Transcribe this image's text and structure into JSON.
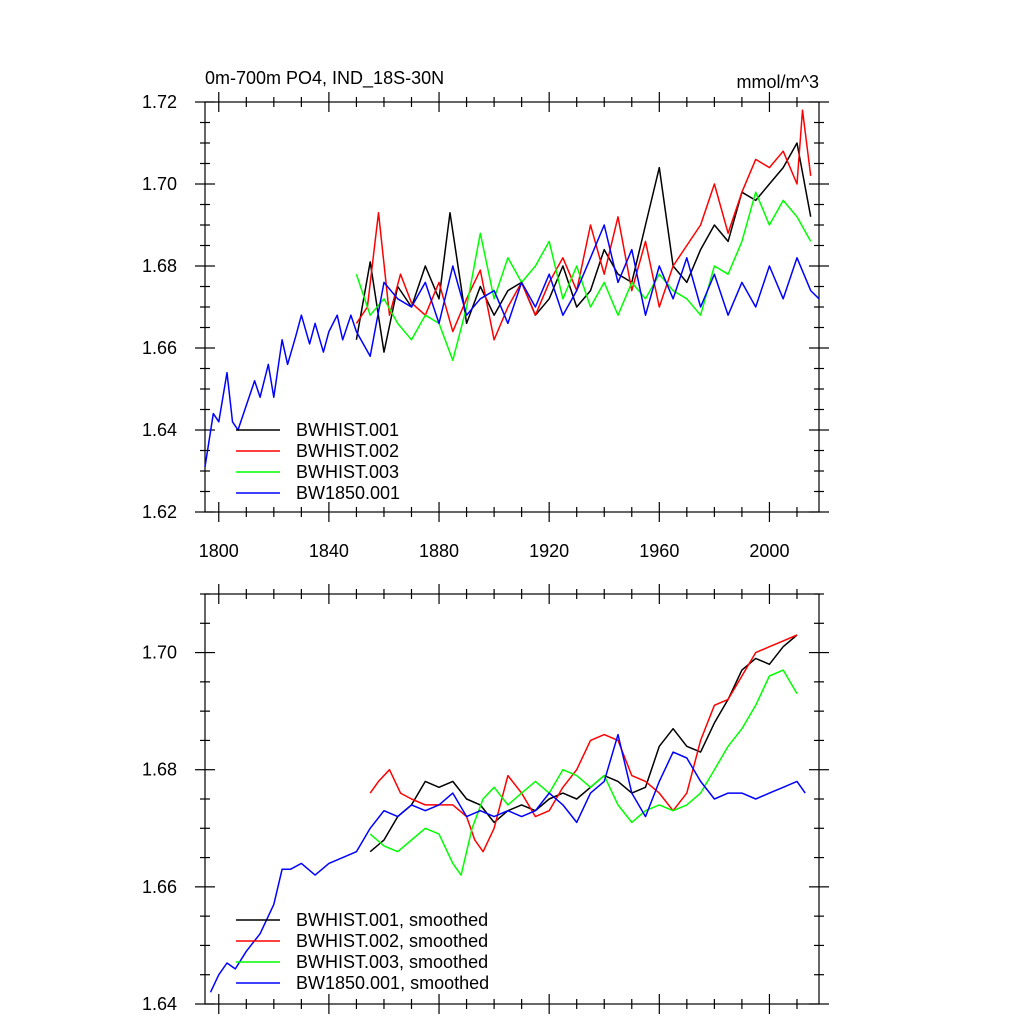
{
  "chart_data": [
    {
      "type": "line",
      "title": "0m-700m PO4, IND_18S-30N",
      "units": "mmol/m^3",
      "xlabel": "",
      "ylabel": "",
      "xlim": [
        1795,
        2018
      ],
      "ylim": [
        1.62,
        1.72
      ],
      "x_major_ticks": [
        1800,
        1840,
        1880,
        1920,
        1960,
        2000
      ],
      "y_major_ticks": [
        1.62,
        1.64,
        1.66,
        1.68,
        1.7,
        1.72
      ],
      "y_tick_labels": [
        "1.62",
        "1.64",
        "1.66",
        "1.68",
        "1.70",
        "1.72"
      ],
      "legend_position": "bottom-left",
      "series": [
        {
          "name": "BWHIST.001",
          "color": "#000000",
          "x": [
            1850,
            1855,
            1860,
            1865,
            1870,
            1875,
            1880,
            1884,
            1890,
            1895,
            1900,
            1905,
            1910,
            1915,
            1920,
            1925,
            1930,
            1935,
            1940,
            1945,
            1950,
            1955,
            1960,
            1965,
            1970,
            1975,
            1980,
            1985,
            1990,
            1995,
            2000,
            2005,
            2010,
            2015
          ],
          "y": [
            1.662,
            1.681,
            1.659,
            1.675,
            1.67,
            1.68,
            1.672,
            1.693,
            1.666,
            1.675,
            1.668,
            1.674,
            1.676,
            1.668,
            1.672,
            1.68,
            1.67,
            1.674,
            1.684,
            1.678,
            1.676,
            1.69,
            1.704,
            1.68,
            1.676,
            1.684,
            1.69,
            1.686,
            1.698,
            1.696,
            1.7,
            1.704,
            1.71,
            1.692
          ]
        },
        {
          "name": "BWHIST.002",
          "color": "#ff0000",
          "x": [
            1850,
            1854,
            1858,
            1862,
            1866,
            1870,
            1875,
            1880,
            1885,
            1890,
            1895,
            1900,
            1905,
            1910,
            1915,
            1920,
            1925,
            1930,
            1935,
            1940,
            1945,
            1950,
            1955,
            1960,
            1965,
            1970,
            1975,
            1980,
            1985,
            1990,
            1995,
            2000,
            2005,
            2010,
            2012,
            2015
          ],
          "y": [
            1.666,
            1.67,
            1.693,
            1.668,
            1.678,
            1.671,
            1.668,
            1.676,
            1.664,
            1.672,
            1.679,
            1.662,
            1.67,
            1.676,
            1.668,
            1.676,
            1.682,
            1.674,
            1.69,
            1.678,
            1.692,
            1.674,
            1.686,
            1.67,
            1.68,
            1.685,
            1.69,
            1.7,
            1.688,
            1.698,
            1.706,
            1.704,
            1.708,
            1.7,
            1.718,
            1.702
          ]
        },
        {
          "name": "BWHIST.003",
          "color": "#00ff00",
          "x": [
            1850,
            1855,
            1860,
            1865,
            1870,
            1875,
            1880,
            1885,
            1890,
            1895,
            1900,
            1905,
            1910,
            1915,
            1920,
            1925,
            1930,
            1935,
            1940,
            1945,
            1950,
            1955,
            1960,
            1965,
            1970,
            1975,
            1980,
            1985,
            1990,
            1995,
            2000,
            2005,
            2010,
            2015
          ],
          "y": [
            1.678,
            1.668,
            1.672,
            1.666,
            1.662,
            1.668,
            1.666,
            1.657,
            1.67,
            1.688,
            1.672,
            1.682,
            1.676,
            1.68,
            1.686,
            1.672,
            1.68,
            1.67,
            1.676,
            1.668,
            1.676,
            1.672,
            1.678,
            1.674,
            1.672,
            1.668,
            1.68,
            1.678,
            1.686,
            1.698,
            1.69,
            1.696,
            1.692,
            1.686
          ]
        },
        {
          "name": "BW1850.001",
          "color": "#0000ff",
          "x": [
            1795,
            1798,
            1800,
            1803,
            1805,
            1807,
            1810,
            1813,
            1815,
            1818,
            1820,
            1823,
            1825,
            1828,
            1830,
            1833,
            1835,
            1838,
            1840,
            1843,
            1845,
            1848,
            1850,
            1855,
            1860,
            1865,
            1870,
            1875,
            1880,
            1885,
            1890,
            1895,
            1900,
            1905,
            1910,
            1915,
            1920,
            1925,
            1930,
            1935,
            1940,
            1945,
            1950,
            1955,
            1960,
            1965,
            1970,
            1975,
            1980,
            1985,
            1990,
            1995,
            2000,
            2005,
            2010,
            2015,
            2018
          ],
          "y": [
            1.631,
            1.644,
            1.642,
            1.654,
            1.642,
            1.64,
            1.646,
            1.652,
            1.648,
            1.656,
            1.648,
            1.662,
            1.656,
            1.663,
            1.668,
            1.661,
            1.666,
            1.659,
            1.664,
            1.668,
            1.662,
            1.668,
            1.664,
            1.658,
            1.676,
            1.672,
            1.67,
            1.676,
            1.666,
            1.68,
            1.668,
            1.672,
            1.674,
            1.666,
            1.676,
            1.67,
            1.678,
            1.668,
            1.674,
            1.682,
            1.69,
            1.676,
            1.684,
            1.668,
            1.68,
            1.672,
            1.682,
            1.67,
            1.678,
            1.668,
            1.676,
            1.67,
            1.68,
            1.672,
            1.682,
            1.674,
            1.672
          ]
        }
      ]
    },
    {
      "type": "line",
      "title": "",
      "xlabel": "",
      "ylabel": "",
      "xlim": [
        1795,
        2018
      ],
      "ylim": [
        1.64,
        1.71
      ],
      "x_major_ticks": [
        1800,
        1840,
        1880,
        1920,
        1960,
        2000
      ],
      "y_major_ticks": [
        1.64,
        1.66,
        1.68,
        1.7
      ],
      "y_tick_labels": [
        "1.64",
        "1.66",
        "1.68",
        "1.70"
      ],
      "legend_position": "bottom-left",
      "series": [
        {
          "name": "BWHIST.001, smoothed",
          "color": "#000000",
          "x": [
            1855,
            1860,
            1865,
            1870,
            1875,
            1880,
            1885,
            1890,
            1895,
            1900,
            1905,
            1910,
            1915,
            1920,
            1925,
            1930,
            1935,
            1940,
            1945,
            1950,
            1955,
            1960,
            1965,
            1970,
            1975,
            1980,
            1985,
            1990,
            1995,
            2000,
            2005,
            2010
          ],
          "y": [
            1.666,
            1.668,
            1.672,
            1.674,
            1.678,
            1.677,
            1.678,
            1.675,
            1.674,
            1.671,
            1.673,
            1.674,
            1.673,
            1.675,
            1.676,
            1.675,
            1.677,
            1.679,
            1.678,
            1.676,
            1.677,
            1.684,
            1.687,
            1.684,
            1.683,
            1.688,
            1.692,
            1.697,
            1.699,
            1.698,
            1.701,
            1.703
          ]
        },
        {
          "name": "BWHIST.002, smoothed",
          "color": "#ff0000",
          "x": [
            1855,
            1858,
            1862,
            1866,
            1870,
            1875,
            1880,
            1885,
            1890,
            1893,
            1896,
            1900,
            1905,
            1910,
            1915,
            1920,
            1925,
            1930,
            1935,
            1940,
            1945,
            1950,
            1955,
            1960,
            1965,
            1970,
            1975,
            1980,
            1985,
            1990,
            1995,
            2000,
            2005,
            2010
          ],
          "y": [
            1.676,
            1.678,
            1.68,
            1.676,
            1.675,
            1.674,
            1.674,
            1.674,
            1.672,
            1.668,
            1.666,
            1.67,
            1.679,
            1.676,
            1.672,
            1.673,
            1.677,
            1.68,
            1.685,
            1.686,
            1.685,
            1.679,
            1.678,
            1.676,
            1.673,
            1.676,
            1.685,
            1.691,
            1.692,
            1.696,
            1.7,
            1.701,
            1.702,
            1.703
          ]
        },
        {
          "name": "BWHIST.003, smoothed",
          "color": "#00ff00",
          "x": [
            1855,
            1860,
            1865,
            1870,
            1875,
            1880,
            1885,
            1888,
            1892,
            1896,
            1900,
            1905,
            1910,
            1915,
            1920,
            1925,
            1930,
            1935,
            1940,
            1945,
            1950,
            1955,
            1960,
            1965,
            1970,
            1975,
            1980,
            1985,
            1990,
            1995,
            2000,
            2005,
            2010
          ],
          "y": [
            1.669,
            1.667,
            1.666,
            1.668,
            1.67,
            1.669,
            1.664,
            1.662,
            1.67,
            1.675,
            1.677,
            1.674,
            1.676,
            1.678,
            1.676,
            1.68,
            1.679,
            1.677,
            1.679,
            1.674,
            1.671,
            1.673,
            1.674,
            1.673,
            1.674,
            1.676,
            1.68,
            1.684,
            1.687,
            1.691,
            1.696,
            1.697,
            1.693
          ]
        },
        {
          "name": "BW1850.001, smoothed",
          "color": "#0000ff",
          "x": [
            1797,
            1800,
            1803,
            1806,
            1810,
            1815,
            1820,
            1823,
            1826,
            1830,
            1835,
            1840,
            1845,
            1850,
            1855,
            1860,
            1865,
            1870,
            1875,
            1880,
            1885,
            1890,
            1895,
            1900,
            1905,
            1910,
            1915,
            1920,
            1925,
            1930,
            1935,
            1940,
            1945,
            1950,
            1955,
            1960,
            1965,
            1970,
            1975,
            1980,
            1985,
            1990,
            1995,
            2000,
            2005,
            2010,
            2013
          ],
          "y": [
            1.642,
            1.645,
            1.647,
            1.646,
            1.649,
            1.652,
            1.657,
            1.663,
            1.663,
            1.664,
            1.662,
            1.664,
            1.665,
            1.666,
            1.67,
            1.673,
            1.672,
            1.674,
            1.673,
            1.674,
            1.676,
            1.672,
            1.673,
            1.672,
            1.673,
            1.672,
            1.673,
            1.676,
            1.674,
            1.671,
            1.676,
            1.678,
            1.686,
            1.676,
            1.672,
            1.678,
            1.683,
            1.682,
            1.678,
            1.675,
            1.676,
            1.676,
            1.675,
            1.676,
            1.677,
            1.678,
            1.676
          ]
        }
      ]
    }
  ]
}
